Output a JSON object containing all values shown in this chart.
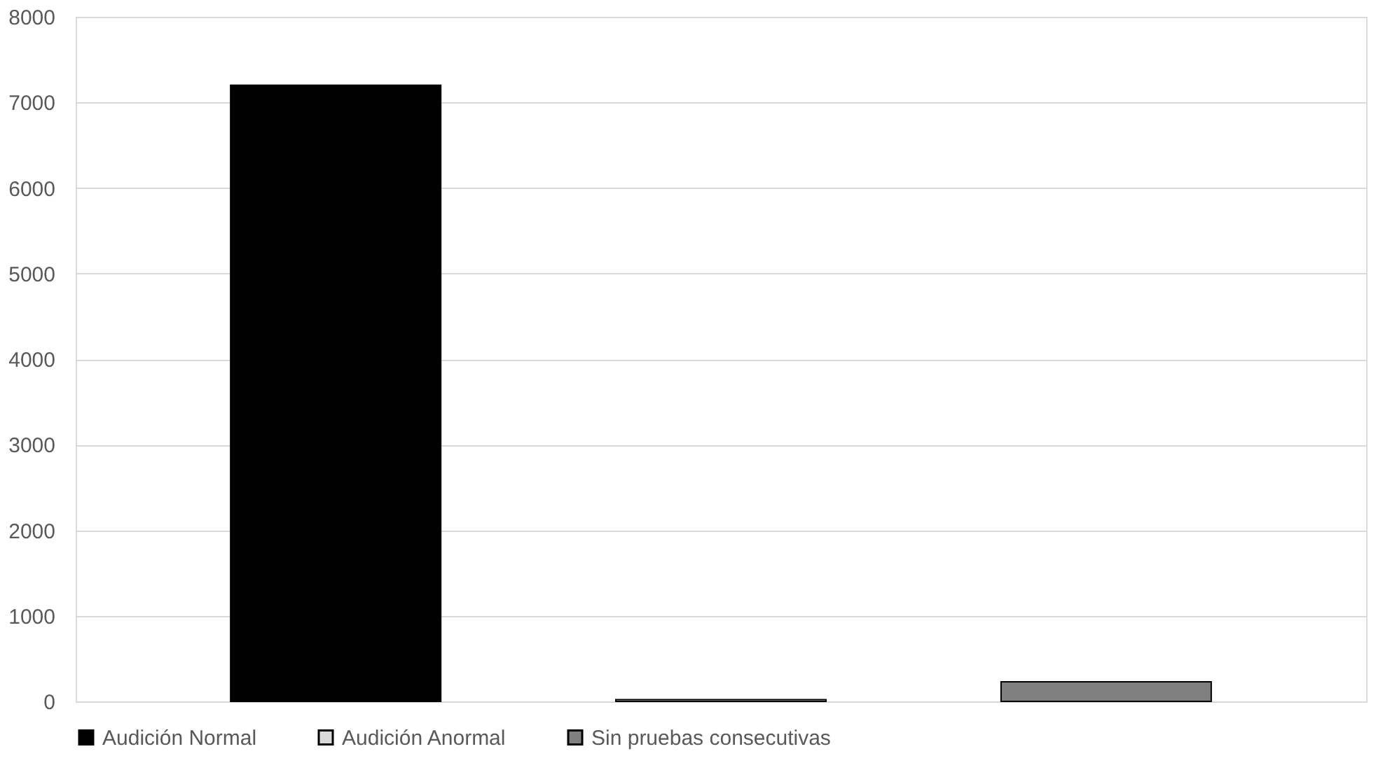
{
  "chart_data": {
    "type": "bar",
    "categories": [
      null
    ],
    "series": [
      {
        "name": "Audición Normal",
        "color": "#000000",
        "values": [
          7200
        ]
      },
      {
        "name": "Audición Anormal",
        "color": "#d9d9d9",
        "values": [
          20
        ]
      },
      {
        "name": "Sin pruebas consecutivas",
        "color": "#808080",
        "values": [
          230
        ]
      }
    ],
    "ylim": [
      0,
      8000
    ],
    "yticks": [
      0,
      1000,
      2000,
      3000,
      4000,
      5000,
      6000,
      7000,
      8000
    ],
    "grid": "y",
    "legend": "bottom"
  }
}
